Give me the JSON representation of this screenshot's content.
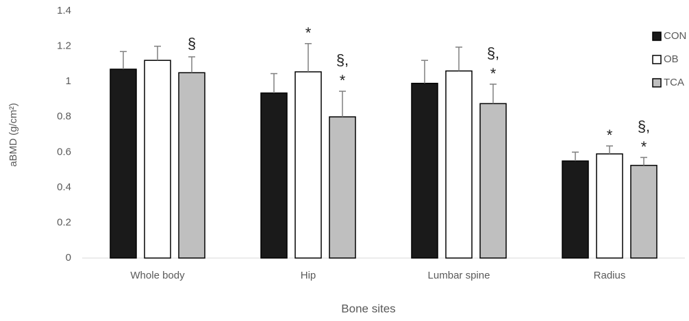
{
  "chart_data": {
    "type": "bar",
    "y_label": "aBMD (g/cm²)",
    "x_label": "Bone sites",
    "categories": [
      "Whole body",
      "Hip",
      "Lumbar spine",
      "Radius"
    ],
    "series": [
      {
        "name": "CON",
        "color": "#1a1a1a",
        "values": [
          1.07,
          0.935,
          0.99,
          0.55
        ],
        "errors": [
          0.1,
          0.11,
          0.13,
          0.05
        ],
        "annotations": [
          null,
          null,
          null,
          null
        ]
      },
      {
        "name": "OB",
        "color": "#ffffff",
        "values": [
          1.12,
          1.055,
          1.06,
          0.59
        ],
        "errors": [
          0.08,
          0.16,
          0.135,
          0.045
        ],
        "annotations": [
          null,
          [
            "*"
          ],
          null,
          [
            "*"
          ]
        ]
      },
      {
        "name": "TCA",
        "color": "#bfbfbf",
        "values": [
          1.05,
          0.8,
          0.875,
          0.525
        ],
        "errors": [
          0.09,
          0.145,
          0.11,
          0.045
        ],
        "annotations": [
          [
            "§"
          ],
          [
            "§,",
            "*"
          ],
          [
            "§,",
            "*"
          ],
          [
            "§,",
            "*"
          ]
        ]
      }
    ],
    "ylim": [
      0,
      1.4
    ],
    "yticks": [
      0,
      0.2,
      0.4,
      0.6,
      0.8,
      1,
      1.2,
      1.4
    ],
    "grid": false,
    "legend": "right"
  }
}
